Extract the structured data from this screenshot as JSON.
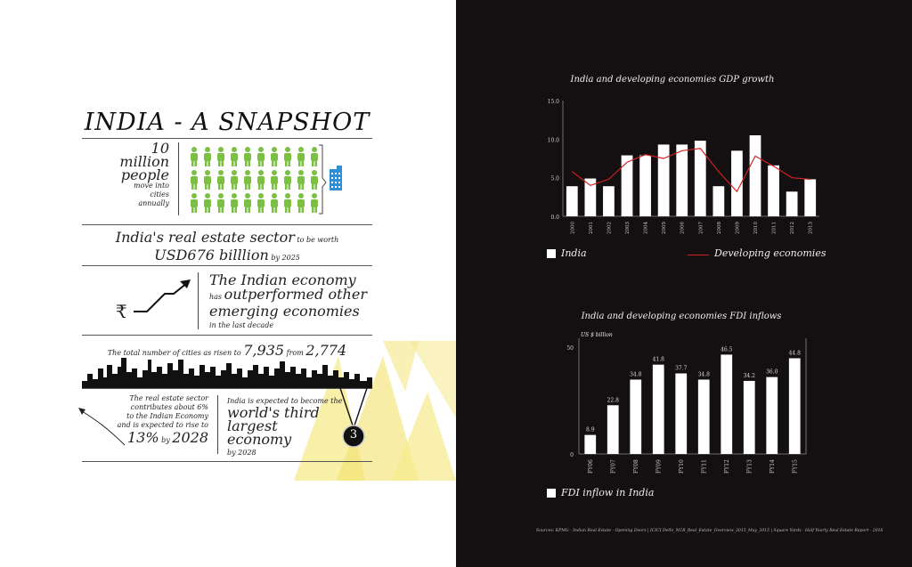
{
  "infographic": {
    "title": "INDIA -  A SNAPSHOT",
    "people": {
      "line1": "10",
      "line2": "million",
      "line3": "people",
      "line4": "move into cities",
      "line5": "annually"
    },
    "realestate": {
      "part1": "India's real estate sector",
      "part2": " to be worth",
      "part3": "USD676 billlion",
      "part4": " by 2025"
    },
    "economy": {
      "line1": "The Indian economy",
      "line2a": "has ",
      "line2b": "outperformed other",
      "line3": "emerging economies",
      "line4": "in the last decade"
    },
    "rupee_symbol": "₹",
    "cities": {
      "part1": "The total number of cities as risen to ",
      "part2": "7,935",
      "part3": " from ",
      "part4": "2,774"
    },
    "contrib": {
      "line1": "The real estate sector",
      "line2": "contributes about 6%",
      "line3": "to the Indian Economy",
      "line4": "and is expected to rise to",
      "line5a": "13%",
      "line5b": " by ",
      "line5c": "2028"
    },
    "third": {
      "line1": "India is expected to become the",
      "line2": "world's third",
      "line3": "largest economy",
      "line4": "by 2028"
    },
    "medal_number": "3",
    "accent_green": "#7bc043",
    "accent_blue": "#2e8fd6",
    "accent_yellow": "#f4e27a"
  },
  "chart_data": [
    {
      "type": "bar",
      "title": "India and developing economies GDP growth",
      "categories": [
        "2000",
        "2001",
        "2002",
        "2003",
        "2004",
        "2005",
        "2006",
        "2007",
        "2008",
        "2009",
        "2010",
        "2011",
        "2012",
        "2013"
      ],
      "series": [
        {
          "name": "India",
          "type": "bar",
          "color": "#ffffff",
          "values": [
            3.9,
            4.9,
            3.9,
            7.9,
            7.9,
            9.3,
            9.3,
            9.8,
            3.9,
            8.5,
            10.5,
            6.6,
            3.2,
            4.8
          ]
        },
        {
          "name": "Developing economies",
          "type": "line",
          "color": "#cc2222",
          "values": [
            5.8,
            4.0,
            4.8,
            7.0,
            8.0,
            7.5,
            8.5,
            8.8,
            5.8,
            3.2,
            7.8,
            6.5,
            5.0,
            4.8
          ]
        }
      ],
      "yticks": [
        "0.0",
        "5.0",
        "10.0",
        "15.0"
      ],
      "ylim": [
        0,
        15
      ]
    },
    {
      "type": "bar",
      "title": "India and developing economies FDI inflows",
      "unit_label": "US $ billion",
      "categories": [
        "FY06",
        "FY07",
        "FY08",
        "FY09",
        "FY10",
        "FY11",
        "FY12",
        "FY13",
        "FY14",
        "FY15"
      ],
      "series": [
        {
          "name": "FDI inflow in India",
          "color": "#ffffff",
          "values": [
            8.9,
            22.8,
            34.8,
            41.8,
            37.7,
            34.8,
            46.5,
            34.2,
            36.0,
            44.8
          ]
        }
      ],
      "data_labels": [
        "8.9",
        "22.8",
        "34.8",
        "41.8",
        "37.7",
        "34.8",
        "46.5",
        "34.2",
        "36.0",
        "44.8"
      ],
      "yticks": [
        "0",
        "50"
      ],
      "ylim": [
        0,
        50
      ]
    }
  ],
  "sources": "Sources:  KPMG - Indian Real Estate - Opening Doors   |   ICICI Delhi_NCR_Real_Estate_Overview_2015_May_2015   |   Square Yards - Half Yearly Real Estate Report - 2016"
}
